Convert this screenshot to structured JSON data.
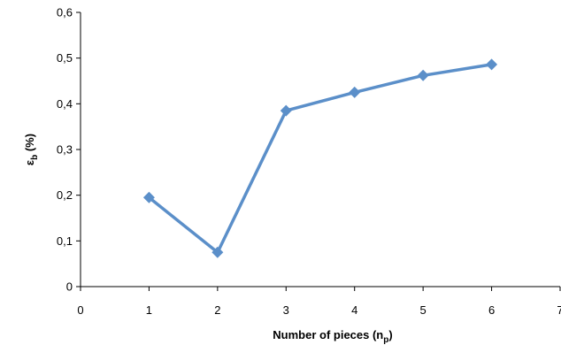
{
  "chart_data": {
    "type": "line",
    "title": "",
    "xlabel": "Number of pieces (n",
    "xlabel_sub": "p",
    "xlabel_close": ")",
    "ylabel": "ε",
    "ylabel_sub": "b",
    "ylabel_unit": " (%)",
    "xlim": [
      0,
      7
    ],
    "ylim": [
      0,
      0.6
    ],
    "x_ticks": [
      "0",
      "1",
      "2",
      "3",
      "4",
      "5",
      "6",
      "7"
    ],
    "y_ticks": [
      "0",
      "0,1",
      "0,2",
      "0,3",
      "0,4",
      "0,5",
      "0,6"
    ],
    "grid": false,
    "series": [
      {
        "color": "#5b8fc9",
        "marker": "diamond",
        "x": [
          1,
          2,
          3,
          4,
          5,
          6
        ],
        "y": [
          0.195,
          0.075,
          0.385,
          0.425,
          0.462,
          0.486
        ]
      }
    ]
  }
}
